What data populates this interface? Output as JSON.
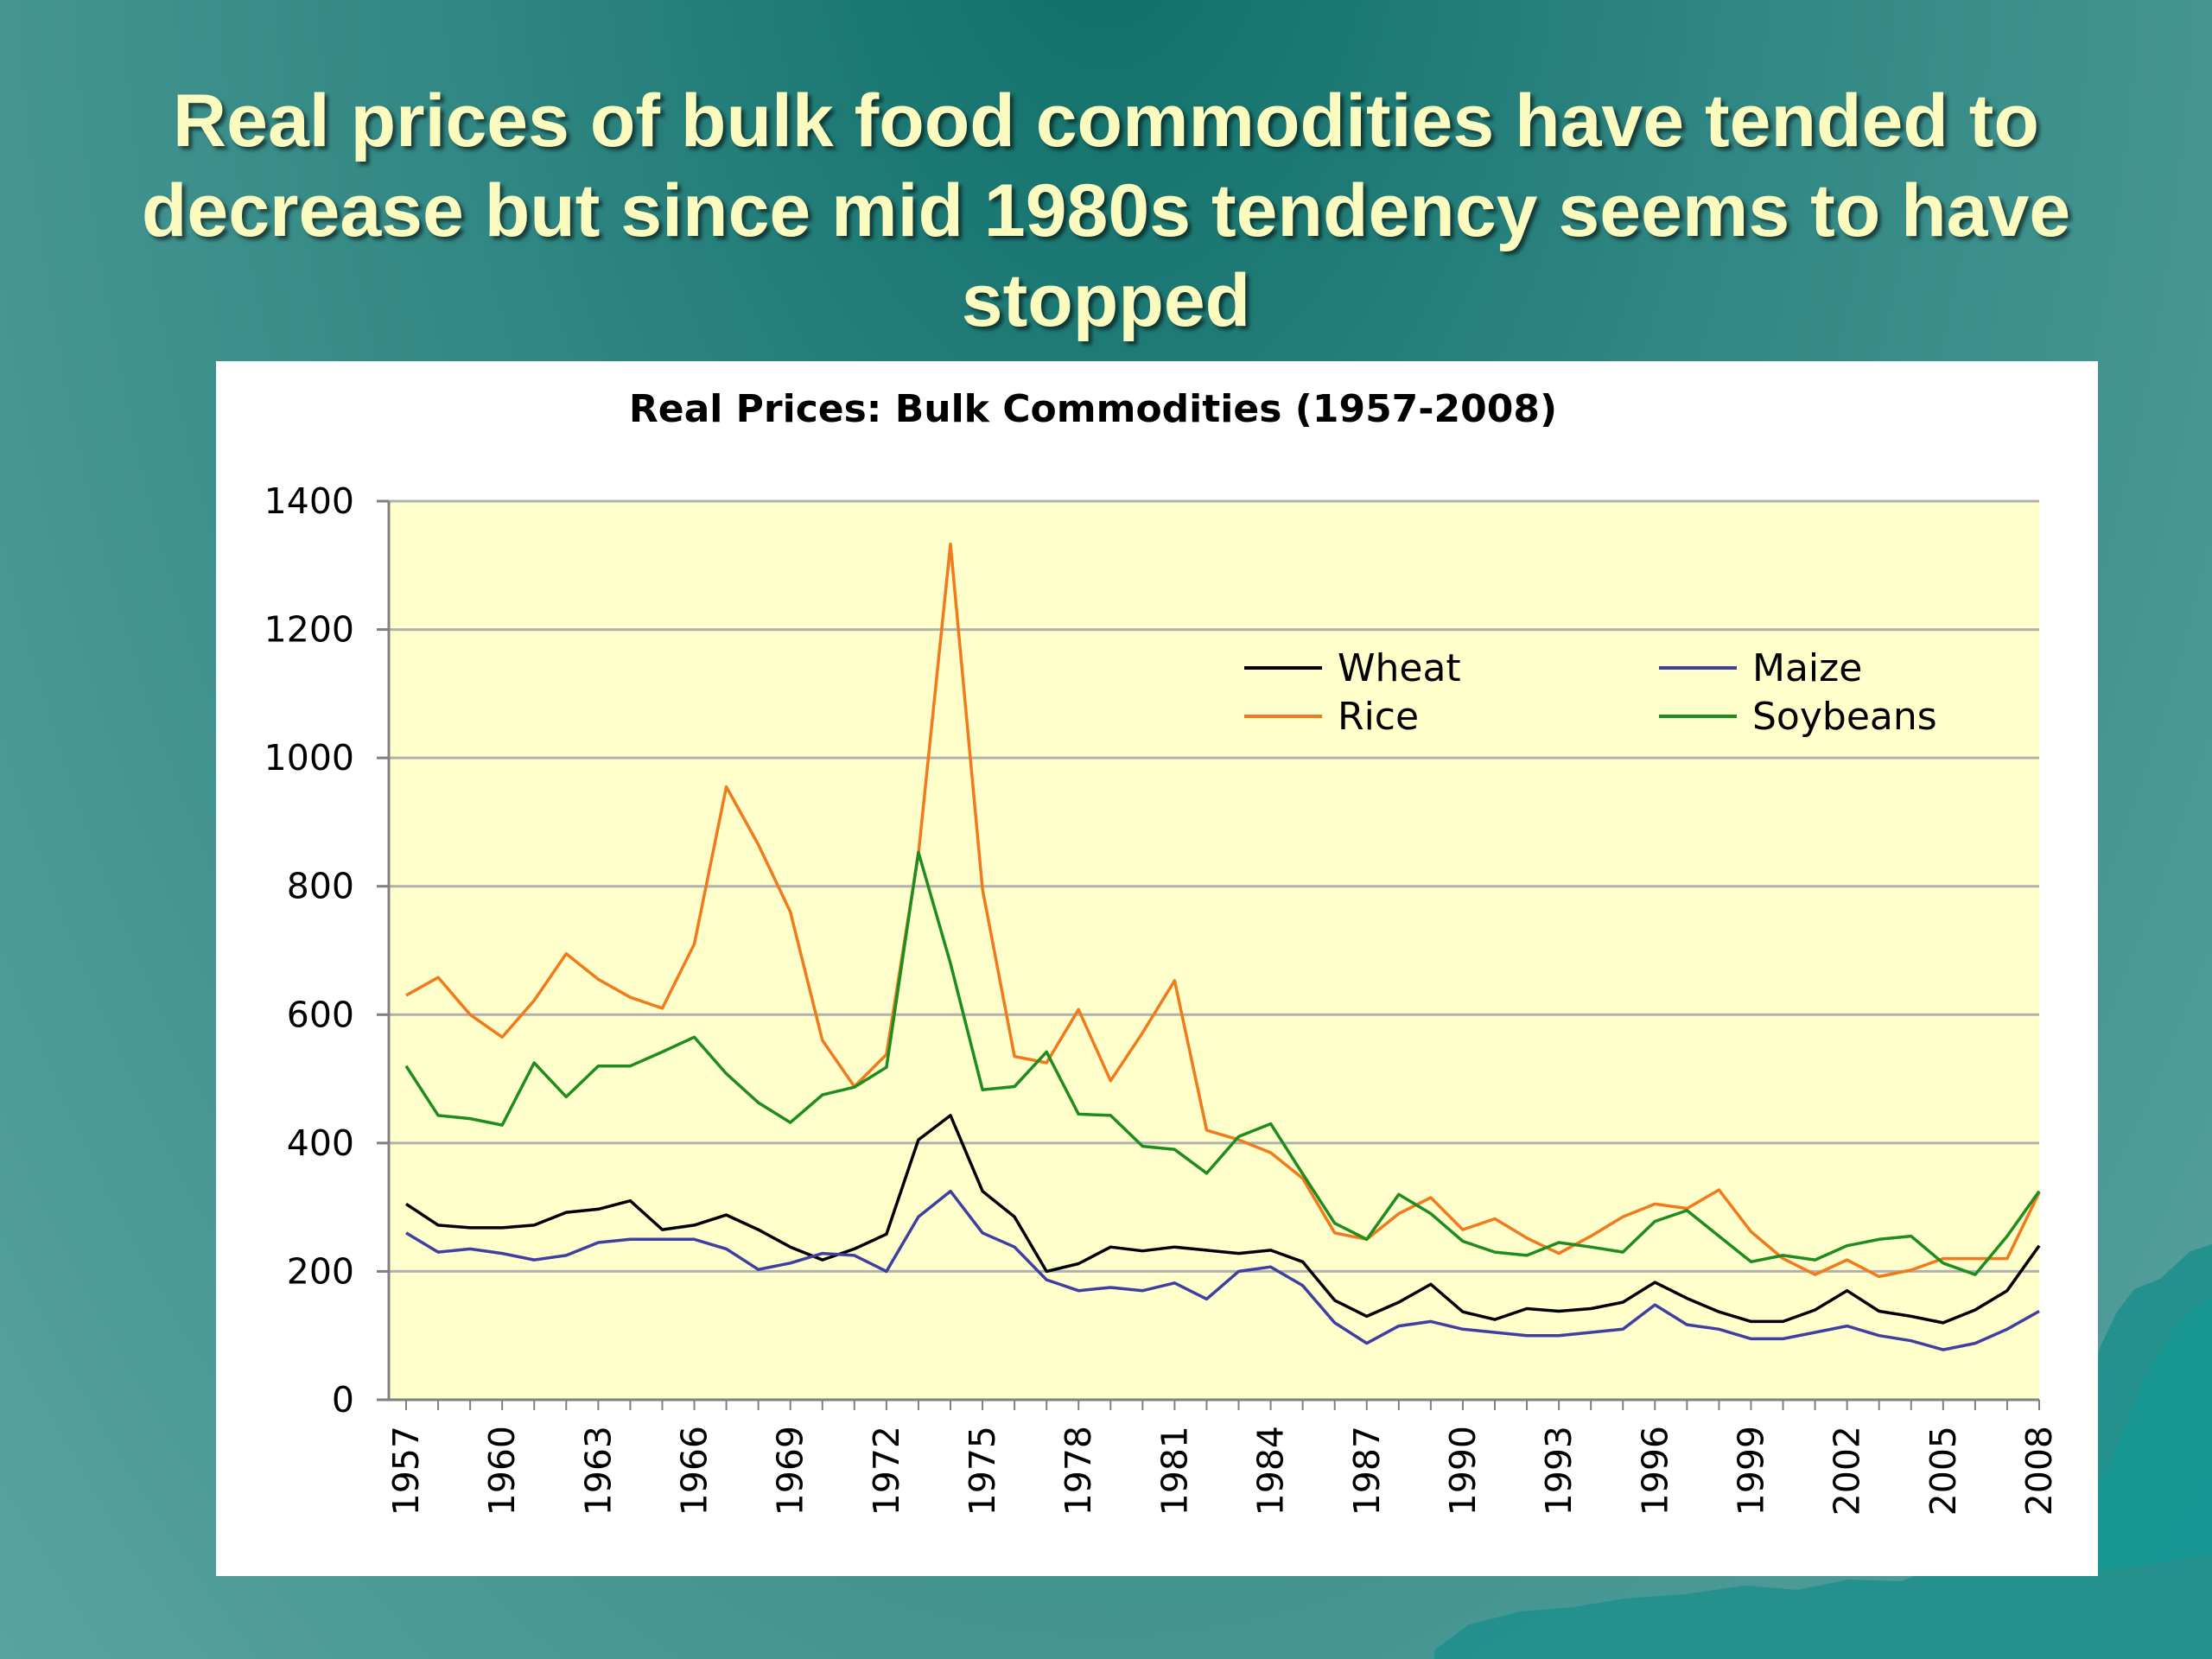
{
  "slide": {
    "title_lines": [
      "Real prices of bulk food commodities have tended to",
      "decrease but since mid 1980s tendency seems to have",
      "stopped"
    ]
  },
  "chart_data": {
    "type": "line",
    "title": "Real Prices: Bulk Commodities (1957-2008)",
    "xlabel": "",
    "ylabel": "",
    "ylim": [
      0,
      1400
    ],
    "yticks": [
      0,
      200,
      400,
      600,
      800,
      1000,
      1200,
      1400
    ],
    "x": [
      1957,
      1958,
      1959,
      1960,
      1961,
      1962,
      1963,
      1964,
      1965,
      1966,
      1967,
      1968,
      1969,
      1970,
      1971,
      1972,
      1973,
      1974,
      1975,
      1976,
      1977,
      1978,
      1979,
      1980,
      1981,
      1982,
      1983,
      1984,
      1985,
      1986,
      1987,
      1988,
      1989,
      1990,
      1991,
      1992,
      1993,
      1994,
      1995,
      1996,
      1997,
      1998,
      1999,
      2000,
      2001,
      2002,
      2003,
      2004,
      2005,
      2006,
      2007,
      2008
    ],
    "xtick_labels": [
      "1957",
      "1960",
      "1963",
      "1966",
      "1969",
      "1972",
      "1975",
      "1978",
      "1981",
      "1984",
      "1987",
      "1990",
      "1993",
      "1996",
      "1999",
      "2002",
      "2005",
      "2008"
    ],
    "grid": true,
    "plot_background": "#ffffcc",
    "legend_position": "top-right",
    "series": [
      {
        "name": "Wheat",
        "color": "#000000",
        "values": [
          305,
          272,
          268,
          268,
          272,
          292,
          297,
          310,
          265,
          272,
          288,
          265,
          238,
          218,
          235,
          258,
          405,
          443,
          325,
          285,
          200,
          212,
          238,
          232,
          238,
          233,
          228,
          233,
          215,
          155,
          130,
          152,
          180,
          137,
          125,
          142,
          138,
          142,
          152,
          183,
          158,
          137,
          122,
          122,
          140,
          170,
          138,
          130,
          120,
          140,
          170,
          240
        ]
      },
      {
        "name": "Maize",
        "color": "#3f3fa0",
        "values": [
          260,
          230,
          235,
          228,
          218,
          225,
          245,
          250,
          250,
          250,
          235,
          203,
          213,
          228,
          225,
          200,
          285,
          325,
          260,
          238,
          187,
          170,
          175,
          170,
          182,
          157,
          200,
          207,
          178,
          120,
          88,
          115,
          122,
          110,
          105,
          100,
          100,
          105,
          110,
          148,
          117,
          110,
          95,
          95,
          105,
          115,
          100,
          92,
          78,
          88,
          110,
          138
        ]
      },
      {
        "name": "Rice",
        "color": "#f07a1c",
        "values": [
          630,
          658,
          600,
          565,
          622,
          695,
          655,
          627,
          610,
          710,
          955,
          865,
          760,
          560,
          488,
          538,
          850,
          1333,
          795,
          535,
          525,
          608,
          497,
          572,
          653,
          420,
          405,
          385,
          345,
          260,
          250,
          290,
          315,
          265,
          282,
          252,
          228,
          255,
          285,
          305,
          298,
          327,
          262,
          220,
          195,
          218,
          192,
          202,
          220,
          220,
          220,
          323
        ]
      },
      {
        "name": "Soybeans",
        "color": "#1f8c1f",
        "values": [
          520,
          443,
          438,
          428,
          525,
          472,
          520,
          520,
          542,
          565,
          508,
          463,
          432,
          475,
          487,
          518,
          853,
          680,
          483,
          488,
          542,
          445,
          443,
          395,
          390,
          353,
          410,
          430,
          352,
          275,
          250,
          320,
          290,
          247,
          230,
          225,
          245,
          238,
          230,
          278,
          295,
          255,
          215,
          225,
          218,
          240,
          250,
          255,
          213,
          195,
          255,
          325
        ]
      }
    ]
  }
}
